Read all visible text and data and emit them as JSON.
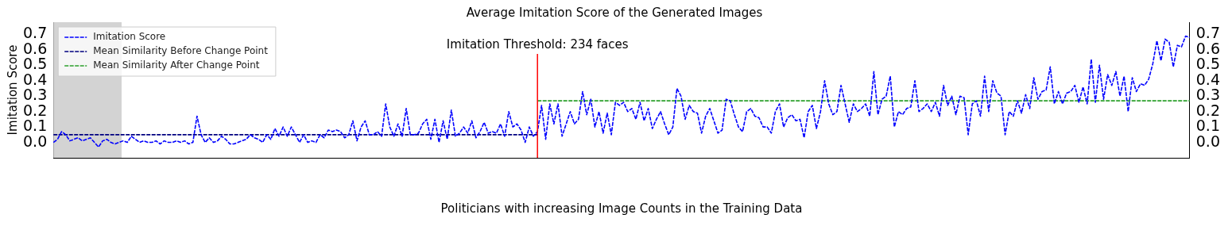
{
  "chart_data": {
    "type": "line",
    "title": "Average Imitation Score of the Generated Images",
    "xlabel": "Politicians with increasing Image Counts in the Training Data",
    "ylabel": "Imitation Score",
    "annotations": [
      "Imitation Threshold: 234 faces"
    ],
    "categories": [
      null,
      null,
      null,
      null,
      null,
      null,
      null,
      null,
      null,
      null,
      null,
      null,
      null,
      null,
      null,
      null,
      null,
      null,
      null,
      null,
      null,
      null,
      null,
      null,
      null,
      null,
      null,
      null,
      null,
      null,
      null,
      null,
      null,
      null,
      null,
      null,
      null,
      null,
      null,
      null,
      null,
      null,
      null,
      null,
      null,
      null,
      null,
      null,
      null,
      null,
      null,
      null,
      null,
      null,
      null,
      null,
      null,
      null,
      null,
      null,
      null,
      null,
      null,
      null,
      null,
      null,
      null,
      null,
      null,
      null,
      null,
      null,
      null,
      null,
      null,
      null,
      null,
      null,
      null,
      null,
      null,
      null,
      null,
      null,
      null,
      null,
      null,
      null,
      null,
      null,
      null,
      null,
      null,
      null,
      null,
      null,
      null,
      null,
      null,
      null,
      null,
      null,
      null,
      null,
      null,
      null,
      null,
      null,
      null,
      null,
      null,
      null,
      null,
      null,
      null,
      null,
      null,
      null,
      null,
      null,
      null,
      null,
      null,
      null,
      null,
      null,
      null,
      null,
      null,
      null,
      null,
      null,
      null,
      null,
      null,
      null,
      null,
      null,
      null,
      null,
      null,
      null,
      null,
      null,
      null,
      null,
      null,
      null,
      null,
      null,
      null,
      null,
      null,
      null,
      null,
      null,
      null,
      null,
      null,
      null,
      null,
      null,
      null,
      null,
      null,
      null,
      null,
      null,
      null,
      null,
      null,
      null,
      null,
      null,
      null,
      null,
      null,
      null,
      null,
      null,
      null,
      null,
      null,
      null,
      null,
      null,
      null,
      null,
      null,
      null,
      null,
      null,
      null,
      null,
      null,
      null,
      null,
      null,
      null,
      null,
      null,
      null,
      null,
      null,
      null,
      null,
      null,
      null,
      null,
      null,
      null,
      null,
      null,
      null,
      null,
      null,
      null,
      null,
      null,
      null,
      null,
      null,
      null,
      null,
      null,
      null,
      null,
      null,
      null,
      null,
      null,
      null,
      null,
      null,
      null,
      null,
      null,
      null,
      null,
      null,
      null,
      null,
      null,
      null,
      null,
      null,
      null,
      null,
      null,
      null,
      null,
      null,
      null,
      null,
      null,
      null,
      null,
      null,
      null,
      null,
      null,
      null,
      null,
      null,
      null,
      null,
      null,
      null,
      null,
      null,
      null,
      null,
      null,
      null,
      null,
      null,
      null,
      null
    ],
    "series": [
      {
        "name": "Imitation Score",
        "color": "#0000ff",
        "line_style": "dashed",
        "marker": "none",
        "values": [
          0.0,
          0.02,
          0.07,
          0.05,
          0.01,
          0.02,
          0.03,
          0.01,
          0.02,
          0.03,
          0.0,
          -0.03,
          0.01,
          0.02,
          0.0,
          -0.01,
          0.0,
          0.01,
          0.0,
          0.04,
          0.02,
          0.0,
          0.01,
          0.0,
          0.0,
          0.01,
          -0.01,
          0.01,
          0.0,
          0.0,
          0.01,
          0.0,
          0.01,
          -0.01,
          0.0,
          0.17,
          0.05,
          0.0,
          0.03,
          0.0,
          0.01,
          0.04,
          0.02,
          -0.01,
          -0.01,
          0.0,
          0.01,
          0.02,
          0.05,
          0.03,
          0.02,
          0.0,
          0.05,
          0.02,
          0.09,
          0.04,
          0.1,
          0.04,
          0.1,
          0.05,
          0.0,
          0.05,
          0.0,
          0.01,
          0.0,
          0.05,
          0.03,
          0.08,
          0.07,
          0.08,
          0.07,
          0.03,
          0.05,
          0.14,
          0.01,
          0.1,
          0.14,
          0.05,
          0.05,
          0.07,
          0.04,
          0.25,
          0.1,
          0.04,
          0.12,
          0.04,
          0.22,
          0.05,
          0.05,
          0.06,
          0.12,
          0.15,
          0.02,
          0.15,
          0.0,
          0.14,
          0.02,
          0.21,
          0.04,
          0.06,
          0.1,
          0.06,
          0.14,
          0.03,
          0.07,
          0.13,
          0.06,
          0.07,
          0.06,
          0.12,
          0.04,
          0.2,
          0.1,
          0.12,
          0.08,
          0.0,
          0.1,
          0.04,
          0.07,
          0.24,
          0.02,
          0.25,
          0.12,
          0.25,
          0.04,
          0.12,
          0.2,
          0.12,
          0.15,
          0.33,
          0.18,
          0.28,
          0.1,
          0.2,
          0.06,
          0.19,
          0.05,
          0.26,
          0.24,
          0.26,
          0.2,
          0.22,
          0.15,
          0.26,
          0.14,
          0.22,
          0.09,
          0.15,
          0.2,
          0.12,
          0.05,
          0.1,
          0.35,
          0.3,
          0.15,
          0.24,
          0.2,
          0.19,
          0.06,
          0.17,
          0.22,
          0.14,
          0.06,
          0.08,
          0.28,
          0.27,
          0.18,
          0.1,
          0.07,
          0.2,
          0.22,
          0.17,
          0.16,
          0.1,
          0.1,
          0.06,
          0.2,
          0.25,
          0.1,
          0.16,
          0.18,
          0.14,
          0.15,
          0.03,
          0.2,
          0.24,
          0.09,
          0.2,
          0.4,
          0.25,
          0.18,
          0.2,
          0.37,
          0.25,
          0.13,
          0.25,
          0.2,
          0.22,
          0.25,
          0.17,
          0.46,
          0.18,
          0.28,
          0.3,
          0.43,
          0.1,
          0.2,
          0.18,
          0.22,
          0.23,
          0.4,
          0.2,
          0.22,
          0.25,
          0.2,
          0.26,
          0.17,
          0.37,
          0.24,
          0.3,
          0.18,
          0.3,
          0.29,
          0.05,
          0.25,
          0.27,
          0.17,
          0.43,
          0.2,
          0.4,
          0.32,
          0.3,
          0.05,
          0.2,
          0.17,
          0.27,
          0.19,
          0.31,
          0.22,
          0.42,
          0.28,
          0.33,
          0.34,
          0.49,
          0.25,
          0.33,
          0.25,
          0.32,
          0.33,
          0.37,
          0.26,
          0.36,
          0.25,
          0.54,
          0.26,
          0.5,
          0.28,
          0.44,
          0.37,
          0.46,
          0.3,
          0.43,
          0.2,
          0.42,
          0.33,
          0.38,
          0.37,
          0.41,
          0.51,
          0.66,
          0.53,
          0.67,
          0.65,
          0.49,
          0.63,
          0.62,
          0.69,
          0.68
        ]
      },
      {
        "name": "Mean Similarity Before Change Point",
        "color": "#000080",
        "line_style": "dashed",
        "marker": "none",
        "values": [
          0.05,
          0.05,
          0.05,
          0.05,
          0.05,
          0.05,
          0.05,
          0.05,
          0.05,
          0.05,
          0.05,
          0.05,
          0.05,
          0.05,
          0.05,
          0.05,
          0.05,
          0.05,
          0.05,
          0.05,
          0.05,
          0.05,
          0.05,
          0.05,
          0.05,
          0.05,
          0.05,
          0.05,
          0.05,
          0.05,
          0.05,
          0.05,
          0.05,
          0.05,
          0.05,
          0.05,
          0.05,
          0.05,
          0.05,
          0.05,
          0.05,
          0.05,
          0.05,
          0.05,
          0.05,
          0.05,
          0.05,
          0.05,
          0.05,
          0.05,
          0.05,
          0.05,
          0.05,
          0.05,
          0.05,
          0.05,
          0.05,
          0.05,
          0.05,
          0.05,
          0.05,
          0.05,
          0.05,
          0.05,
          0.05,
          0.05,
          0.05,
          0.05,
          0.05,
          0.05,
          0.05,
          0.05,
          0.05,
          0.05,
          0.05,
          0.05,
          0.05,
          0.05,
          0.05,
          0.05,
          0.05,
          0.05,
          0.05,
          0.05,
          0.05,
          0.05,
          0.05,
          0.05,
          0.05,
          0.05,
          0.05,
          0.05,
          0.05,
          0.05,
          0.05,
          0.05,
          0.05,
          0.05,
          0.05,
          0.05,
          0.05,
          0.05,
          0.05,
          0.05,
          0.05,
          0.05,
          0.05,
          0.05,
          0.05,
          0.05,
          0.05,
          0.05,
          0.05,
          0.05,
          0.05,
          0.05,
          0.05,
          0.05,
          0.05,
          null,
          null,
          null,
          null,
          null,
          null,
          null,
          null,
          null,
          null,
          null,
          null,
          null,
          null,
          null,
          null,
          null,
          null,
          null,
          null,
          null,
          null,
          null,
          null,
          null,
          null,
          null,
          null,
          null,
          null,
          null,
          null,
          null,
          null,
          null,
          null,
          null,
          null,
          null,
          null,
          null,
          null,
          null,
          null,
          null,
          null,
          null,
          null,
          null,
          null,
          null,
          null,
          null,
          null,
          null,
          null,
          null,
          null,
          null,
          null,
          null,
          null,
          null,
          null,
          null,
          null,
          null,
          null,
          null,
          null,
          null,
          null,
          null,
          null,
          null,
          null,
          null,
          null,
          null,
          null,
          null,
          null,
          null,
          null,
          null,
          null,
          null,
          null,
          null,
          null,
          null,
          null,
          null,
          null,
          null,
          null,
          null,
          null,
          null,
          null,
          null,
          null,
          null,
          null,
          null,
          null,
          null,
          null,
          null,
          null,
          null,
          null,
          null,
          null,
          null,
          null,
          null,
          null,
          null,
          null,
          null,
          null,
          null,
          null,
          null,
          null,
          null,
          null,
          null,
          null,
          null,
          null,
          null,
          null,
          null,
          null,
          null,
          null,
          null,
          null,
          null,
          null,
          null,
          null,
          null,
          null,
          null,
          null,
          null,
          null,
          null,
          null,
          null,
          null,
          null,
          null,
          null,
          null,
          null
        ]
      },
      {
        "name": "Mean Similarity After Change Point",
        "color": "#2ca02c",
        "line_style": "dashed",
        "marker": "none",
        "values": [
          null,
          null,
          null,
          null,
          null,
          null,
          null,
          null,
          null,
          null,
          null,
          null,
          null,
          null,
          null,
          null,
          null,
          null,
          null,
          null,
          null,
          null,
          null,
          null,
          null,
          null,
          null,
          null,
          null,
          null,
          null,
          null,
          null,
          null,
          null,
          null,
          null,
          null,
          null,
          null,
          null,
          null,
          null,
          null,
          null,
          null,
          null,
          null,
          null,
          null,
          null,
          null,
          null,
          null,
          null,
          null,
          null,
          null,
          null,
          null,
          null,
          null,
          null,
          null,
          null,
          null,
          null,
          null,
          null,
          null,
          null,
          null,
          null,
          null,
          null,
          null,
          null,
          null,
          null,
          null,
          null,
          null,
          null,
          null,
          null,
          null,
          null,
          null,
          null,
          null,
          null,
          null,
          null,
          null,
          null,
          null,
          null,
          null,
          null,
          null,
          null,
          null,
          null,
          null,
          null,
          null,
          null,
          null,
          null,
          null,
          null,
          null,
          null,
          null,
          null,
          null,
          null,
          null,
          0.27,
          0.27,
          0.27,
          0.27,
          0.27,
          0.27,
          0.27,
          0.27,
          0.27,
          0.27,
          0.27,
          0.27,
          0.27,
          0.27,
          0.27,
          0.27,
          0.27,
          0.27,
          0.27,
          0.27,
          0.27,
          0.27,
          0.27,
          0.27,
          0.27,
          0.27,
          0.27,
          0.27,
          0.27,
          0.27,
          0.27,
          0.27,
          0.27,
          0.27,
          0.27,
          0.27,
          0.27,
          0.27,
          0.27,
          0.27,
          0.27,
          0.27,
          0.27,
          0.27,
          0.27,
          0.27,
          0.27,
          0.27,
          0.27,
          0.27,
          0.27,
          0.27,
          0.27,
          0.27,
          0.27,
          0.27,
          0.27,
          0.27,
          0.27,
          0.27,
          0.27,
          0.27,
          0.27,
          0.27,
          0.27,
          0.27,
          0.27,
          0.27,
          0.27,
          0.27,
          0.27,
          0.27,
          0.27,
          0.27,
          0.27,
          0.27,
          0.27,
          0.27,
          0.27,
          0.27,
          0.27,
          0.27,
          0.27,
          0.27,
          0.27,
          0.27,
          0.27,
          0.27,
          0.27,
          0.27,
          0.27,
          0.27,
          0.27,
          0.27,
          0.27,
          0.27,
          0.27,
          0.27,
          0.27,
          0.27,
          0.27,
          0.27,
          0.27,
          0.27,
          0.27,
          0.27,
          0.27,
          0.27,
          0.27,
          0.27,
          0.27,
          0.27,
          0.27,
          0.27,
          0.27,
          0.27,
          0.27,
          0.27,
          0.27,
          0.27,
          0.27,
          0.27,
          0.27,
          0.27,
          0.27,
          0.27,
          0.27,
          0.27,
          0.27,
          0.27,
          0.27,
          0.27,
          0.27,
          0.27,
          0.27,
          0.27,
          0.27,
          0.27,
          0.27,
          0.27,
          0.27,
          0.27,
          0.27,
          0.27,
          0.27,
          0.27,
          0.27,
          0.27,
          0.27,
          0.27,
          0.27,
          0.27,
          0.27,
          0.27,
          0.27,
          0.27,
          0.27,
          0.27,
          0.27,
          0.27
        ]
      }
    ],
    "ylim": [
      -0.1,
      0.78
    ],
    "yticks": [
      {
        "value": 0,
        "label": "0.0"
      },
      0.1,
      0.2,
      0.3,
      0.4,
      0.5,
      0.6,
      0.7
    ],
    "y2lim": [
      -0.1,
      0.78
    ],
    "y2ticks": [
      {
        "value": 0,
        "label": "0.0"
      },
      0.1,
      0.2,
      0.3,
      0.4,
      0.5,
      0.6,
      0.7
    ],
    "legend": "top left"
  }
}
